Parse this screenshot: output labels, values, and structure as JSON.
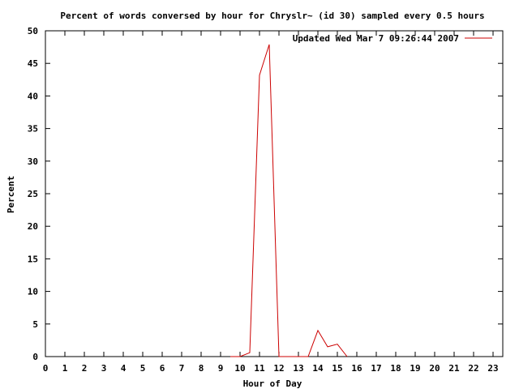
{
  "chart_data": {
    "type": "line",
    "title": "Percent of words conversed by hour for Chryslr~ (id 30) sampled every 0.5 hours",
    "xlabel": "Hour of Day",
    "ylabel": "Percent",
    "xlim": [
      0,
      23.5
    ],
    "ylim": [
      0,
      50
    ],
    "xticks": [
      0,
      1,
      2,
      3,
      4,
      5,
      6,
      7,
      8,
      9,
      10,
      11,
      12,
      13,
      14,
      15,
      16,
      17,
      18,
      19,
      20,
      21,
      22,
      23
    ],
    "yticks": [
      0,
      5,
      10,
      15,
      20,
      25,
      30,
      35,
      40,
      45,
      50
    ],
    "grid": false,
    "legend_position": "top-right",
    "series": [
      {
        "name": "Updated Wed Mar  7 09:26:44 2007",
        "color": "#cc0000",
        "x": [
          9.5,
          10.0,
          10.5,
          11.0,
          11.5,
          12.0,
          12.5,
          13.0,
          13.5,
          14.0,
          14.5,
          15.0,
          15.5
        ],
        "y": [
          0,
          0,
          0.6,
          43.2,
          47.9,
          0,
          0,
          0,
          0,
          4.0,
          1.5,
          1.9,
          0
        ]
      }
    ]
  }
}
